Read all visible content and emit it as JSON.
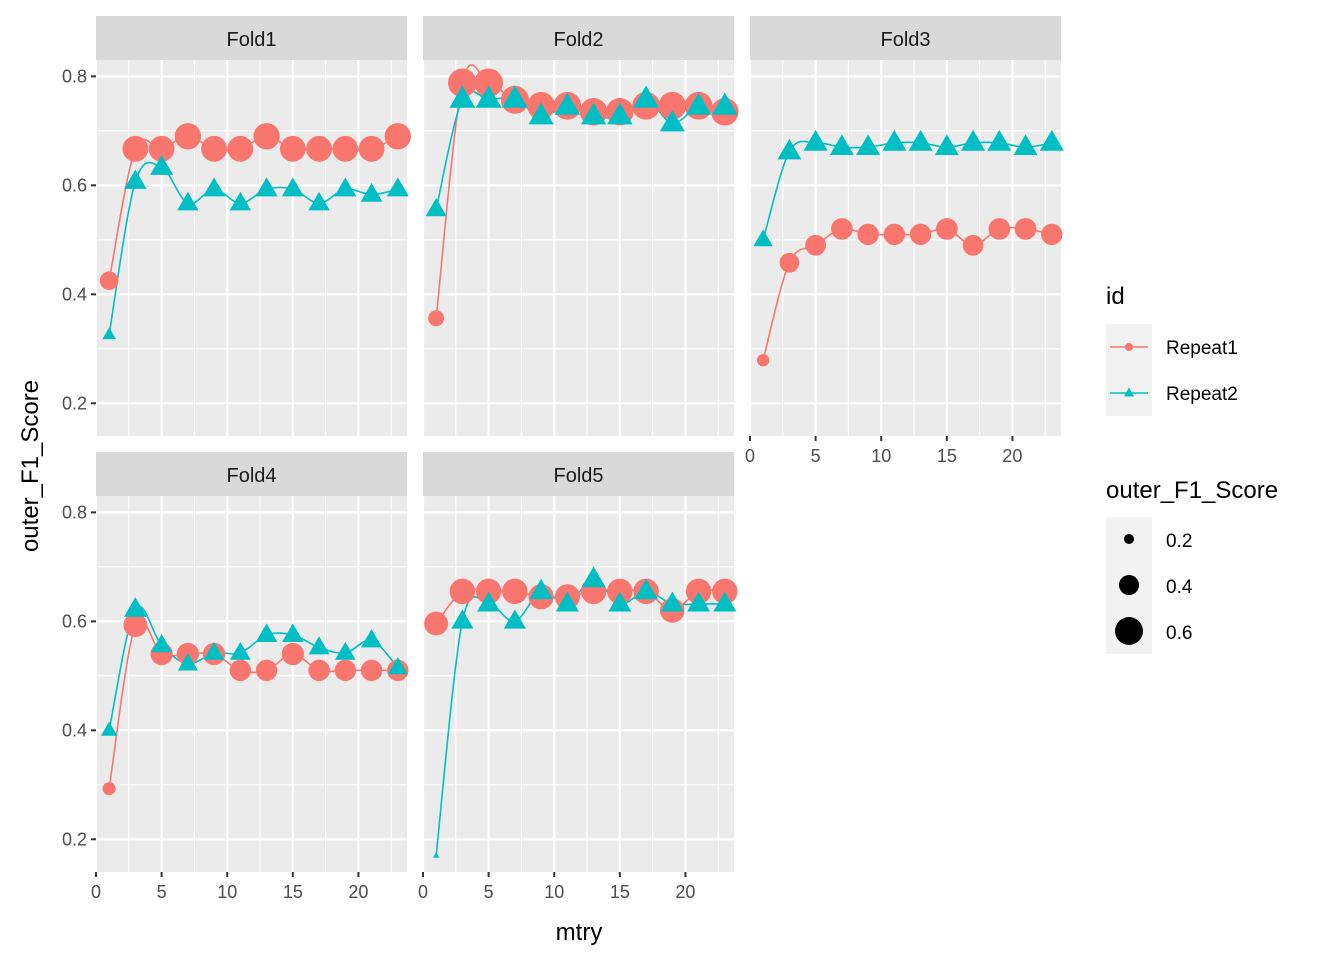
{
  "chart_data": {
    "type": "line",
    "xlabel": "mtry",
    "ylabel": "outer_F1_Score",
    "xlim": [
      0,
      23.7
    ],
    "ylim": [
      0.14,
      0.83
    ],
    "x_ticks": [
      0,
      5,
      10,
      15,
      20
    ],
    "y_ticks": [
      0.2,
      0.4,
      0.6,
      0.8
    ],
    "grid": true,
    "legend_position": "right",
    "colors": {
      "Repeat1": "#F8766D",
      "Repeat2": "#00BFC4"
    },
    "size_range": [
      0.2,
      0.8
    ],
    "legend": {
      "color_title": "id",
      "color_entries": [
        "Repeat1",
        "Repeat2"
      ],
      "size_title": "outer_F1_Score",
      "size_entries": [
        "0.2",
        "0.4",
        "0.6"
      ]
    },
    "panels": [
      {
        "title": "Fold1",
        "series": [
          {
            "name": "Repeat1",
            "x": [
              1,
              3,
              5,
              7,
              9,
              11,
              13,
              15,
              17,
              19,
              21,
              23
            ],
            "y": [
              0.425,
              0.667,
              0.667,
              0.69,
              0.667,
              0.667,
              0.69,
              0.667,
              0.667,
              0.667,
              0.667,
              0.69
            ]
          },
          {
            "name": "Repeat2",
            "x": [
              1,
              3,
              5,
              7,
              9,
              11,
              13,
              15,
              17,
              19,
              21,
              23
            ],
            "y": [
              0.326,
              0.607,
              0.633,
              0.567,
              0.593,
              0.567,
              0.593,
              0.593,
              0.567,
              0.593,
              0.583,
              0.593
            ]
          }
        ]
      },
      {
        "title": "Fold2",
        "series": [
          {
            "name": "Repeat1",
            "x": [
              1,
              3,
              5,
              7,
              9,
              11,
              13,
              15,
              17,
              19,
              21,
              23
            ],
            "y": [
              0.356,
              0.788,
              0.788,
              0.757,
              0.746,
              0.746,
              0.735,
              0.735,
              0.746,
              0.746,
              0.746,
              0.735
            ]
          },
          {
            "name": "Repeat2",
            "x": [
              1,
              3,
              5,
              7,
              9,
              11,
              13,
              15,
              17,
              19,
              21,
              23
            ],
            "y": [
              0.556,
              0.758,
              0.758,
              0.758,
              0.727,
              0.745,
              0.727,
              0.727,
              0.758,
              0.714,
              0.745,
              0.745
            ]
          }
        ]
      },
      {
        "title": "Fold3",
        "series": [
          {
            "name": "Repeat1",
            "x": [
              1,
              3,
              5,
              7,
              9,
              11,
              13,
              15,
              17,
              19,
              21,
              23
            ],
            "y": [
              0.279,
              0.458,
              0.49,
              0.52,
              0.51,
              0.51,
              0.51,
              0.52,
              0.49,
              0.52,
              0.52,
              0.51
            ]
          },
          {
            "name": "Repeat2",
            "x": [
              1,
              3,
              5,
              7,
              9,
              11,
              13,
              15,
              17,
              19,
              21,
              23
            ],
            "y": [
              0.5,
              0.662,
              0.678,
              0.67,
              0.67,
              0.678,
              0.678,
              0.67,
              0.678,
              0.678,
              0.67,
              0.678
            ]
          }
        ]
      },
      {
        "title": "Fold4",
        "series": [
          {
            "name": "Repeat1",
            "x": [
              1,
              3,
              5,
              7,
              9,
              11,
              13,
              15,
              17,
              19,
              21,
              23
            ],
            "y": [
              0.293,
              0.593,
              0.54,
              0.54,
              0.54,
              0.51,
              0.51,
              0.54,
              0.51,
              0.51,
              0.51,
              0.51
            ]
          },
          {
            "name": "Repeat2",
            "x": [
              1,
              3,
              5,
              7,
              9,
              11,
              13,
              15,
              17,
              19,
              21,
              23
            ],
            "y": [
              0.4,
              0.622,
              0.556,
              0.522,
              0.542,
              0.542,
              0.575,
              0.575,
              0.552,
              0.542,
              0.565,
              0.515
            ]
          }
        ]
      },
      {
        "title": "Fold5",
        "series": [
          {
            "name": "Repeat1",
            "x": [
              1,
              3,
              5,
              7,
              9,
              11,
              13,
              15,
              17,
              19,
              21,
              23
            ],
            "y": [
              0.596,
              0.655,
              0.655,
              0.655,
              0.645,
              0.645,
              0.655,
              0.655,
              0.655,
              0.62,
              0.655,
              0.655
            ]
          },
          {
            "name": "Repeat2",
            "x": [
              1,
              3,
              5,
              7,
              9,
              11,
              13,
              15,
              17,
              19,
              21,
              23
            ],
            "y": [
              0.17,
              0.6,
              0.632,
              0.6,
              0.655,
              0.632,
              0.677,
              0.632,
              0.655,
              0.632,
              0.632,
              0.632
            ]
          }
        ]
      }
    ]
  }
}
